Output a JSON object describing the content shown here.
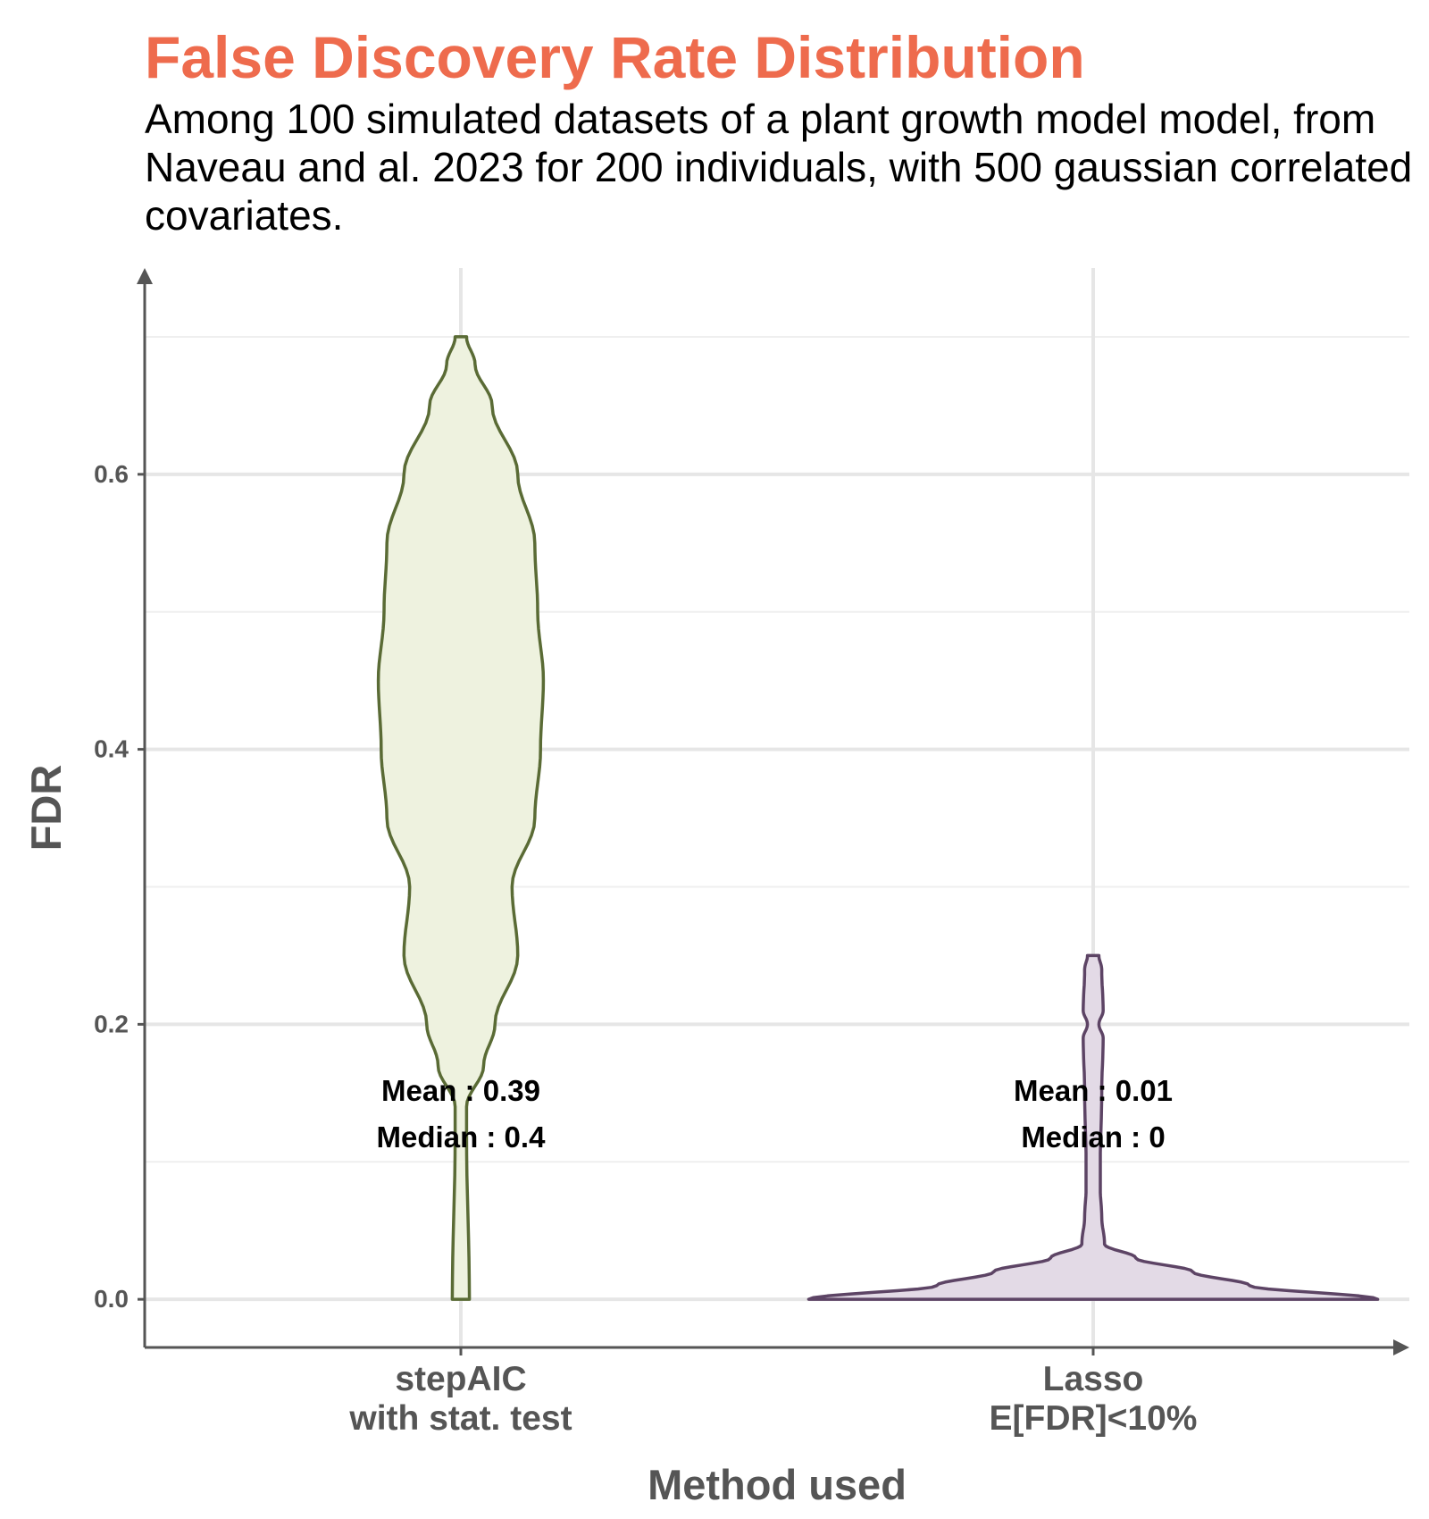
{
  "chart_data": {
    "type": "violin",
    "title": "False Discovery Rate Distribution",
    "subtitle": "Among 100 simulated datasets of a plant growth model model, from Naveau and al. 2023 for 200 individuals, with 500 gaussian correlated covariates.",
    "xlabel": "Method used",
    "ylabel": "FDR",
    "ylim": [
      -0.035,
      0.75
    ],
    "y_ticks": [
      0.0,
      0.2,
      0.4,
      0.6
    ],
    "y_tick_labels": [
      "0.0",
      "0.2",
      "0.4",
      "0.6"
    ],
    "grid": true,
    "legend": "none",
    "categories": [
      [
        "stepAIC",
        "with stat. test"
      ],
      [
        "Lasso",
        "E[FDR]<10%"
      ]
    ],
    "series": [
      {
        "category_index": 0,
        "fill": "#eef2df",
        "stroke": "#5a6b35",
        "range": [
          0.0,
          0.7
        ],
        "density_profile": [
          [
            0.0,
            0.03
          ],
          [
            0.12,
            0.02
          ],
          [
            0.14,
            0.02
          ],
          [
            0.17,
            0.08
          ],
          [
            0.2,
            0.12
          ],
          [
            0.25,
            0.2
          ],
          [
            0.3,
            0.18
          ],
          [
            0.35,
            0.26
          ],
          [
            0.4,
            0.28
          ],
          [
            0.45,
            0.29
          ],
          [
            0.5,
            0.27
          ],
          [
            0.55,
            0.26
          ],
          [
            0.6,
            0.2
          ],
          [
            0.65,
            0.11
          ],
          [
            0.68,
            0.05
          ],
          [
            0.7,
            0.02
          ]
        ],
        "labels": [
          "Mean : 0.39",
          "Median : 0.4"
        ]
      },
      {
        "category_index": 1,
        "fill": "#e3dae6",
        "stroke": "#5d4465",
        "range": [
          0.0,
          0.25
        ],
        "density_profile": [
          [
            0.0,
            1.0
          ],
          [
            0.01,
            0.55
          ],
          [
            0.02,
            0.35
          ],
          [
            0.03,
            0.15
          ],
          [
            0.04,
            0.04
          ],
          [
            0.06,
            0.03
          ],
          [
            0.08,
            0.025
          ],
          [
            0.1,
            0.025
          ],
          [
            0.15,
            0.03
          ],
          [
            0.19,
            0.035
          ],
          [
            0.2,
            0.02
          ],
          [
            0.21,
            0.035
          ],
          [
            0.24,
            0.03
          ],
          [
            0.25,
            0.02
          ]
        ],
        "labels": [
          "Mean : 0.01",
          "Median : 0"
        ]
      }
    ]
  }
}
